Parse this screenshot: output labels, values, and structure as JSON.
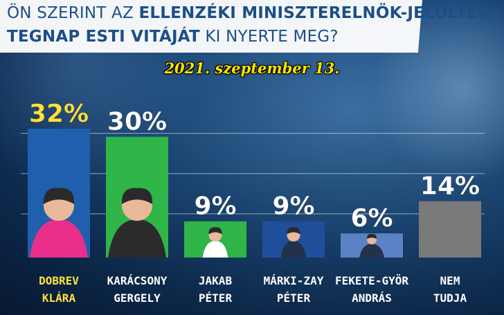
{
  "title": {
    "line1_prefix": "ÖN SZERINT AZ ",
    "line1_bold": "ELLENZÉKI MINISZTERELNÖK-JELÖLTEK",
    "line2_bold": "TEGNAP ESTI VITÁJÁT",
    "line2_rest": " KI NYERTE MEG?"
  },
  "date": "2021. szeptember 13.",
  "chart_data": {
    "type": "bar",
    "ylim": [
      0,
      35
    ],
    "grid": true,
    "categories": [
      [
        "DOBREV",
        "KLÁRA"
      ],
      [
        "KARÁCSONY",
        "GERGELY"
      ],
      [
        "JAKAB",
        "PÉTER"
      ],
      [
        "MÁRKI-ZAY",
        "PÉTER"
      ],
      [
        "FEKETE-GYÖR",
        "ANDRÁS"
      ],
      [
        "NEM",
        "TUDJA"
      ]
    ],
    "values": [
      32,
      30,
      9,
      9,
      6,
      14
    ],
    "value_labels": [
      "32%",
      "30%",
      "9%",
      "9%",
      "6%",
      "14%"
    ],
    "bar_colors": [
      "#1f5fae",
      "#2fb548",
      "#2fb548",
      "#1f4f9b",
      "#5b82c4",
      "#7a7a7a"
    ],
    "label_colors": [
      "#ffe23a",
      "#ffffff",
      "#ffffff",
      "#ffffff",
      "#ffffff",
      "#ffffff"
    ],
    "category_label_colors": [
      "#ffe23a",
      "#ffffff",
      "#ffffff",
      "#ffffff",
      "#ffffff",
      "#ffffff"
    ],
    "bar_has_portrait": [
      true,
      true,
      true,
      true,
      true,
      false
    ]
  }
}
